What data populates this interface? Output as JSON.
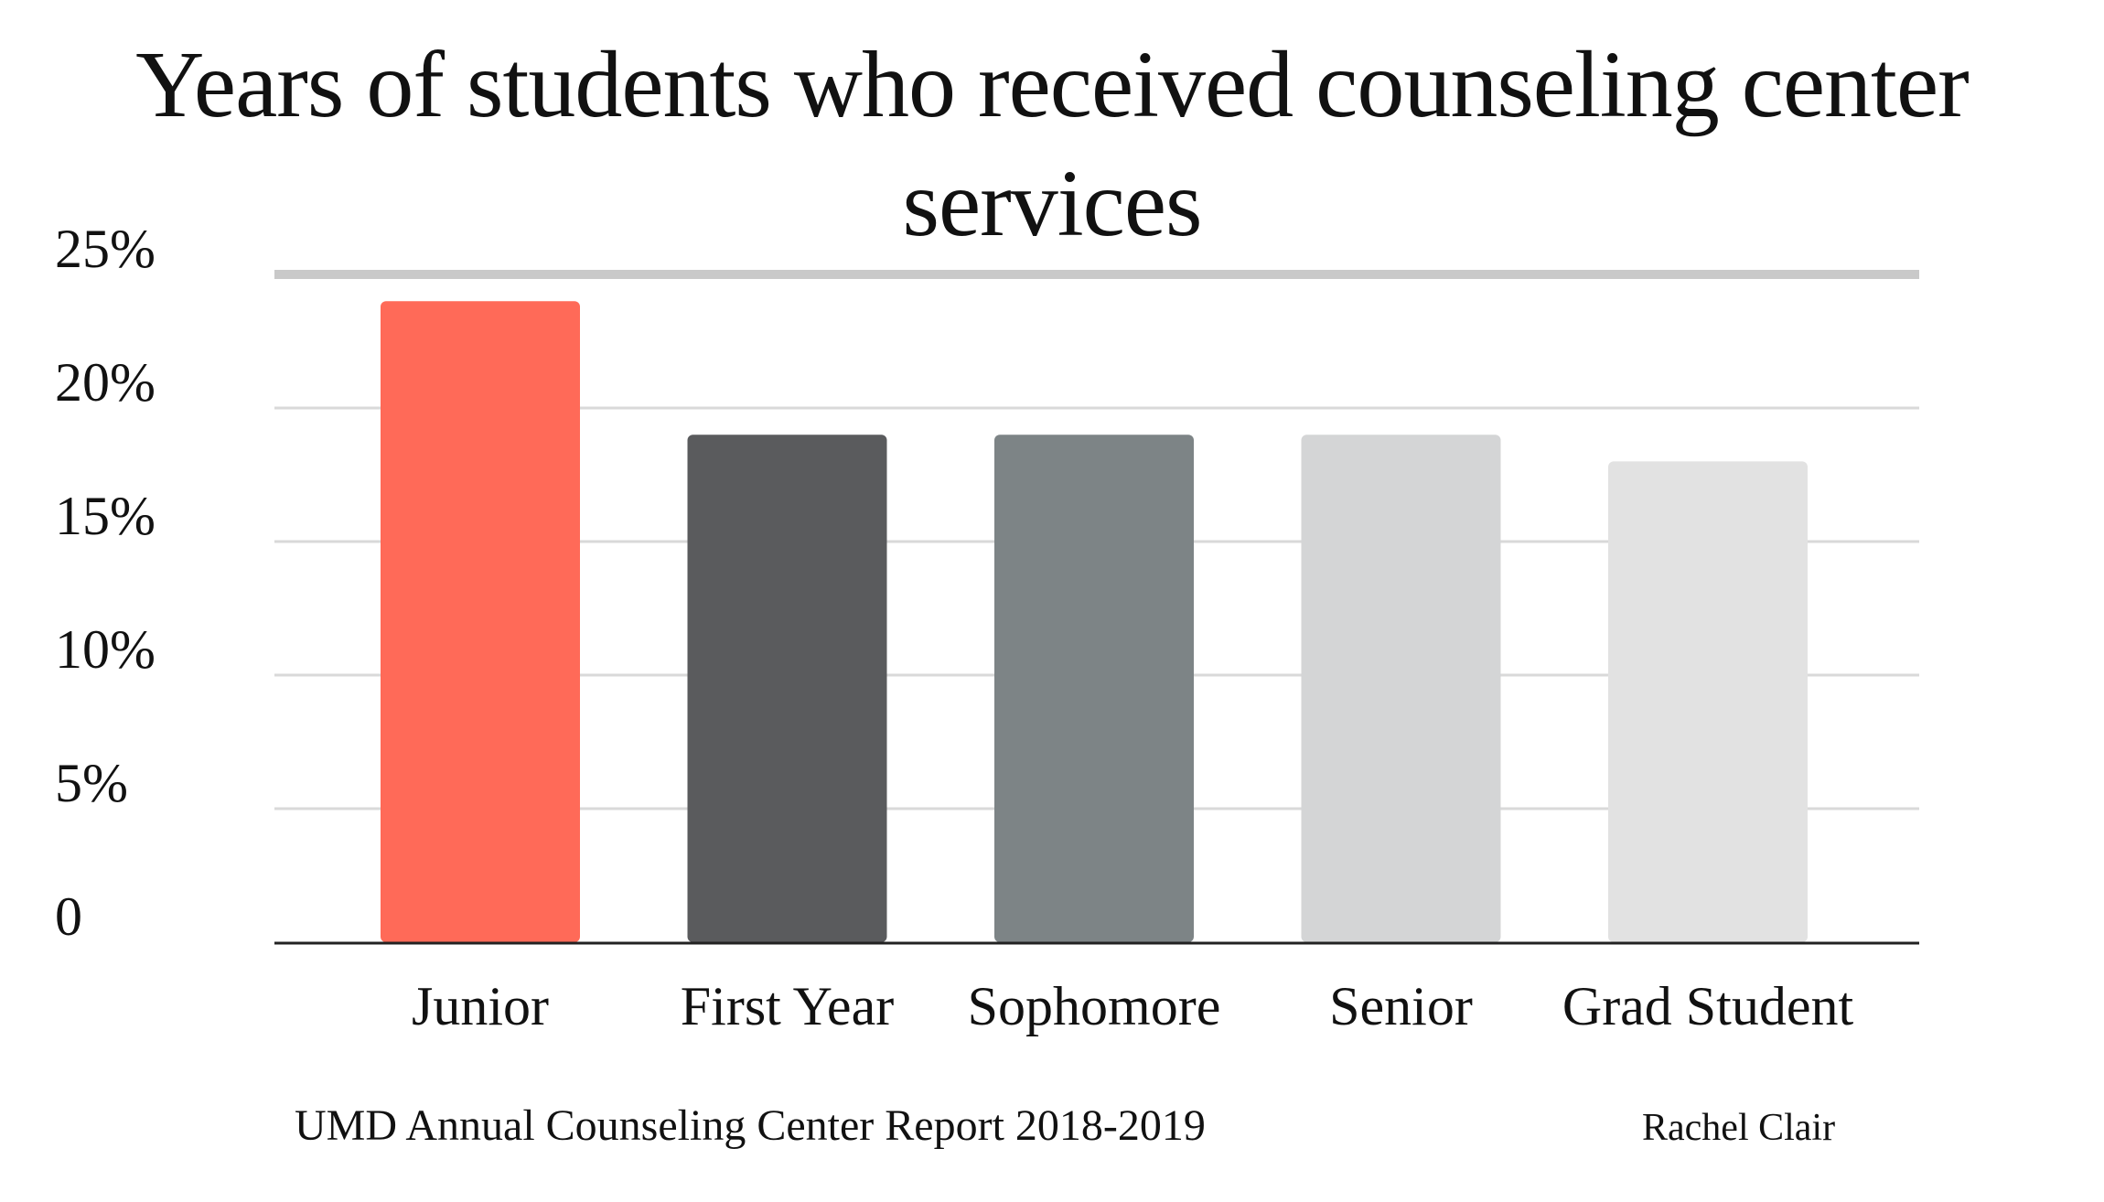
{
  "chart_data": {
    "type": "bar",
    "title": "Years of students who received counseling center services",
    "categories": [
      "Junior",
      "First Year",
      "Sophomore",
      "Senior",
      "Grad Student"
    ],
    "values": [
      24,
      19,
      19,
      19,
      18
    ],
    "colors": [
      "#ff6a58",
      "#5a5b5d",
      "#7d8486",
      "#d4d5d6",
      "#e2e2e2"
    ],
    "y_ticks": [
      "0",
      "5%",
      "10%",
      "15%",
      "20%",
      "25%"
    ],
    "y_tick_values": [
      0,
      5,
      10,
      15,
      20,
      25
    ],
    "ylim": [
      0,
      25
    ],
    "value_unit": "%",
    "grid": true,
    "gridline_color": "#d9d9d9",
    "top_gridline_color": "#c9c9c9",
    "xlabel": "",
    "ylabel": ""
  },
  "source_text": "UMD Annual Counseling Center Report 2018-2019",
  "author_text": "Rachel Clair"
}
